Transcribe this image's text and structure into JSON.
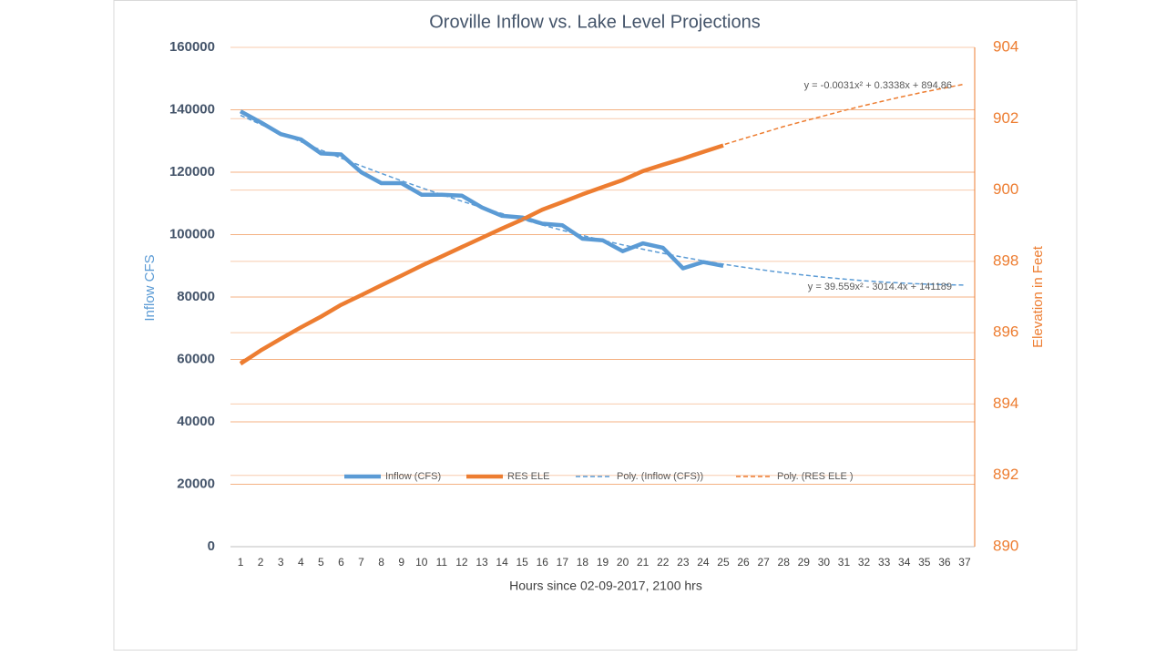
{
  "chart_data": {
    "type": "line",
    "title": "Oroville Inflow vs. Lake Level Projections",
    "x_label": "Hours since 02-09-2017, 2100 hrs",
    "y_label": "Inflow CFS",
    "y2_label": "Elevation in Feet",
    "x": [
      1,
      2,
      3,
      4,
      5,
      6,
      7,
      8,
      9,
      10,
      11,
      12,
      13,
      14,
      15,
      16,
      17,
      18,
      19,
      20,
      21,
      22,
      23,
      24,
      25,
      26,
      27,
      28,
      29,
      30,
      31,
      32,
      33,
      34,
      35,
      36,
      37
    ],
    "xlim": [
      0.5,
      37.5
    ],
    "xticks": [
      1,
      2,
      3,
      4,
      5,
      6,
      7,
      8,
      9,
      10,
      11,
      12,
      13,
      14,
      15,
      16,
      17,
      18,
      19,
      20,
      21,
      22,
      23,
      24,
      25,
      26,
      27,
      28,
      29,
      30,
      31,
      32,
      33,
      34,
      35,
      36,
      37
    ],
    "ylim": [
      0,
      160000
    ],
    "yticks": [
      0,
      20000,
      40000,
      60000,
      80000,
      100000,
      120000,
      140000,
      160000
    ],
    "y2lim": [
      890,
      904
    ],
    "y2ticks": [
      890,
      892,
      894,
      896,
      898,
      900,
      902,
      904
    ],
    "grid": true,
    "legend": "bottom-center",
    "series": [
      {
        "name": "Inflow (CFS)",
        "color": "#5b9bd5",
        "style": "solid",
        "values": [
          139500,
          136000,
          132200,
          130500,
          126000,
          125700,
          120000,
          116500,
          116500,
          112800,
          112800,
          112500,
          108700,
          106000,
          105500,
          103500,
          103000,
          98700,
          98200,
          94700,
          97200,
          95800,
          89200,
          91200,
          90000,
          null,
          null,
          null,
          null,
          null,
          null,
          null,
          null,
          null,
          null,
          null,
          null
        ]
      },
      {
        "name": "RES ELE",
        "color": "#ed7d31",
        "style": "solid",
        "axis": "y2",
        "values": [
          895.13,
          895.5,
          895.83,
          896.15,
          896.45,
          896.78,
          897.05,
          897.33,
          897.6,
          897.88,
          898.14,
          898.4,
          898.66,
          898.92,
          899.17,
          899.45,
          899.66,
          899.88,
          900.08,
          900.28,
          900.53,
          900.71,
          900.88,
          901.07,
          901.25,
          null,
          null,
          null,
          null,
          null,
          null,
          null,
          null,
          null,
          null,
          null,
          null
        ]
      },
      {
        "name": "Poly. (Inflow (CFS))",
        "color": "#5b9bd5",
        "style": "dashed",
        "values": [
          138214,
          135319,
          132501,
          129764,
          127106,
          124527,
          122027,
          119607,
          117265,
          115001,
          112815,
          110711,
          108685,
          106738,
          104870,
          103081,
          101370,
          99739,
          98187,
          96713,
          95318,
          94003,
          92766,
          91608,
          90553,
          89557,
          88639,
          87800,
          87040,
          86360,
          85759,
          85237,
          84794,
          84429,
          84145,
          83939,
          83812
        ]
      },
      {
        "name": "Poly. (RES ELE )",
        "color": "#ed7d31",
        "style": "dashed",
        "axis": "y2",
        "values": [
          895.19,
          895.51,
          895.83,
          896.15,
          896.45,
          896.75,
          897.04,
          897.33,
          897.61,
          897.89,
          898.16,
          898.42,
          898.68,
          898.93,
          899.17,
          899.41,
          899.64,
          899.87,
          900.08,
          900.3,
          900.5,
          900.7,
          900.9,
          901.08,
          901.27,
          901.44,
          901.61,
          901.78,
          901.93,
          902.08,
          902.23,
          902.37,
          902.5,
          902.63,
          902.75,
          902.86,
          902.97
        ]
      }
    ],
    "annotations": [
      "y = -0.0031x² + 0.3338x + 894.86",
      "y = 39.559x² - 3014.4x + 141189"
    ]
  }
}
